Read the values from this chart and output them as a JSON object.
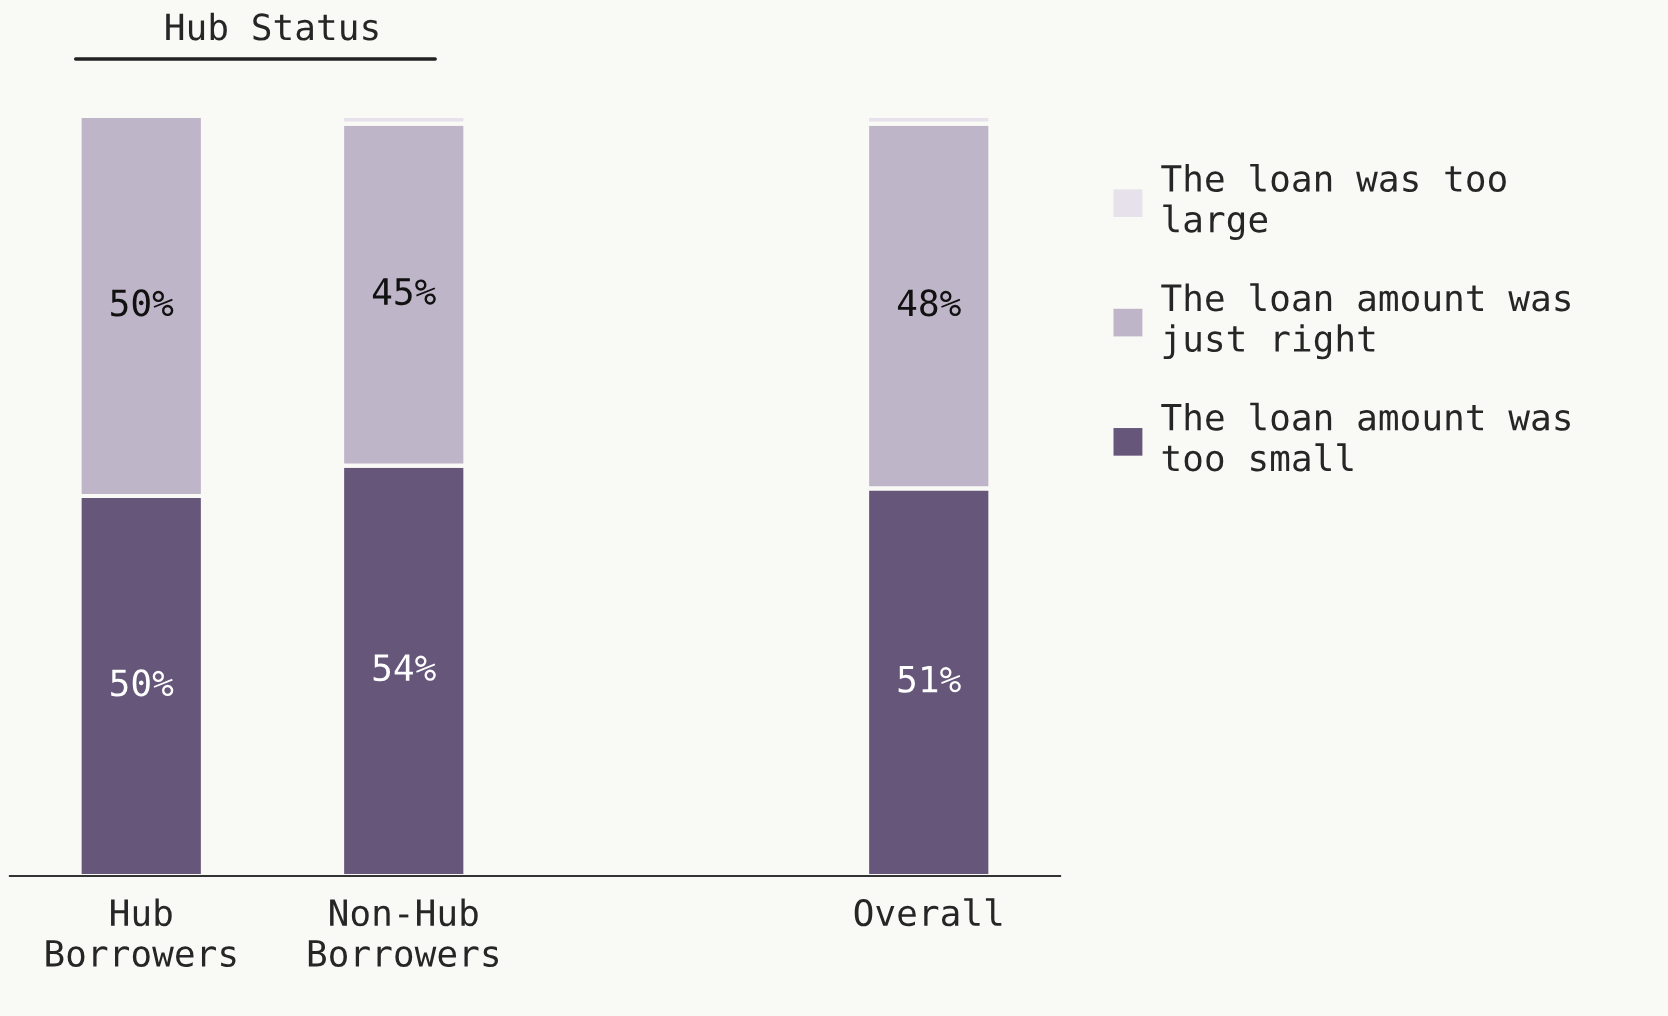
{
  "chart_data": {
    "type": "bar",
    "stacked": true,
    "categories": [
      "Hub\nBorrowers",
      "Non-Hub\nBorrowers",
      null,
      "Overall"
    ],
    "series": [
      {
        "name": "The loan amount was\ntoo small",
        "color": "#65567a",
        "values": [
          50,
          54,
          null,
          51
        ],
        "value_labels": [
          "50%",
          "54%",
          null,
          "51%"
        ]
      },
      {
        "name": "The loan amount was\njust right",
        "color": "#bfb5c8",
        "values": [
          50,
          45,
          null,
          48
        ],
        "value_labels": [
          "50%",
          "45%",
          null,
          "48%"
        ]
      },
      {
        "name": "The loan was too\nlarge",
        "color": "#e6e1ea",
        "values": [
          0,
          1,
          null,
          1
        ],
        "value_labels": [
          null,
          null,
          null,
          null
        ]
      }
    ],
    "ylim": [
      0,
      100
    ],
    "tick_labels": "x",
    "grid": false,
    "legend": "right",
    "annotations": [
      "Hub Status"
    ]
  }
}
